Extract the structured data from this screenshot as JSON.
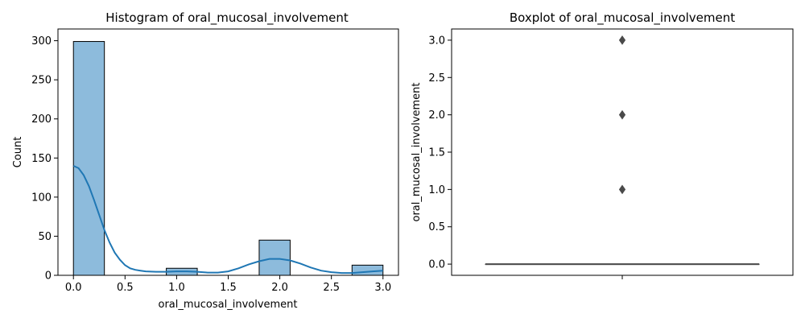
{
  "chart_data": [
    {
      "type": "bar",
      "subtype": "histogram-with-kde",
      "title": "Histogram of oral_mucosal_involvement",
      "xlabel": "oral_mucosal_involvement",
      "ylabel": "Count",
      "xlim": [
        -0.15,
        3.15
      ],
      "ylim": [
        0,
        315
      ],
      "xticks": [
        "0.0",
        "0.5",
        "1.0",
        "1.5",
        "2.0",
        "2.5",
        "3.0"
      ],
      "yticks": [
        "0",
        "50",
        "100",
        "150",
        "200",
        "250",
        "300"
      ],
      "bins": [
        {
          "x0": 0.0,
          "x1": 0.3,
          "count": 299
        },
        {
          "x0": 0.3,
          "x1": 0.6,
          "count": 0
        },
        {
          "x0": 0.6,
          "x1": 0.9,
          "count": 0
        },
        {
          "x0": 0.9,
          "x1": 1.2,
          "count": 9
        },
        {
          "x0": 1.2,
          "x1": 1.5,
          "count": 0
        },
        {
          "x0": 1.5,
          "x1": 1.8,
          "count": 0
        },
        {
          "x0": 1.8,
          "x1": 2.1,
          "count": 45
        },
        {
          "x0": 2.1,
          "x1": 2.4,
          "count": 0
        },
        {
          "x0": 2.4,
          "x1": 2.7,
          "count": 0
        },
        {
          "x0": 2.7,
          "x1": 3.0,
          "count": 13
        }
      ],
      "kde": {
        "x": [
          0.0,
          0.05,
          0.1,
          0.15,
          0.2,
          0.25,
          0.3,
          0.35,
          0.4,
          0.45,
          0.5,
          0.55,
          0.6,
          0.65,
          0.7,
          0.8,
          0.9,
          1.0,
          1.1,
          1.2,
          1.3,
          1.4,
          1.5,
          1.6,
          1.7,
          1.8,
          1.9,
          2.0,
          2.1,
          2.2,
          2.3,
          2.4,
          2.5,
          2.6,
          2.7,
          2.8,
          2.9,
          3.0
        ],
        "y": [
          140,
          137,
          128,
          114,
          96,
          77,
          58,
          42,
          29,
          20,
          13,
          9,
          7,
          6,
          5,
          4.5,
          4.5,
          5,
          5,
          4.5,
          3.5,
          3.5,
          5,
          9,
          14,
          18,
          21,
          21,
          19,
          15,
          10,
          6,
          4,
          3,
          3,
          4,
          5,
          6
        ]
      },
      "bar_color": "#8dbbdc",
      "line_color": "#1f77b4"
    },
    {
      "type": "scatter",
      "subtype": "boxplot",
      "title": "Boxplot of oral_mucosal_involvement",
      "xlabel": "",
      "ylabel": "oral_mucosal_involvement",
      "ylim": [
        -0.15,
        3.15
      ],
      "yticks": [
        "0.0",
        "0.5",
        "1.0",
        "1.5",
        "2.0",
        "2.5",
        "3.0"
      ],
      "box": {
        "q1": 0,
        "median": 0,
        "q3": 0,
        "whisker_low": 0,
        "whisker_high": 0
      },
      "outliers": [
        1.0,
        2.0,
        3.0
      ],
      "color": "#4a4a4a"
    }
  ]
}
